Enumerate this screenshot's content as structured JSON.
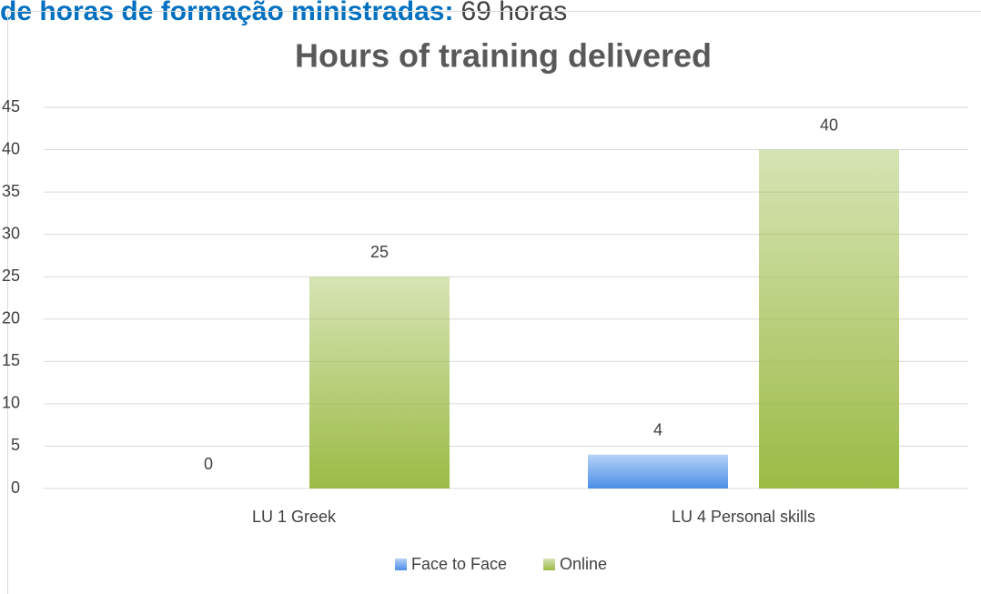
{
  "header": {
    "label": "de horas de formação ministradas:",
    "value": "69 horas"
  },
  "chart_data": {
    "type": "bar",
    "title": "Hours of training delivered",
    "categories": [
      "LU 1 Greek",
      "LU 4 Personal skills"
    ],
    "series": [
      {
        "name": "Face to Face",
        "color": "#4a8ee8",
        "values": [
          0,
          4
        ]
      },
      {
        "name": "Online",
        "color": "#9bbb45",
        "values": [
          25,
          40
        ]
      }
    ],
    "ylim": [
      0,
      45
    ],
    "yticks": [
      0,
      5,
      10,
      15,
      20,
      25,
      30,
      35,
      40,
      45
    ],
    "grid": true,
    "legend": "bottom"
  }
}
